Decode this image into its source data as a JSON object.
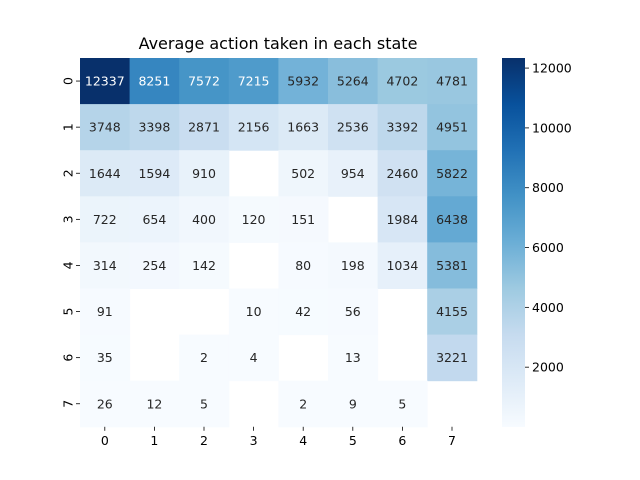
{
  "chart_data": {
    "type": "heatmap",
    "title": "Average action taken in each state",
    "xlabel": "",
    "ylabel": "",
    "x_categories": [
      "0",
      "1",
      "2",
      "3",
      "4",
      "5",
      "6",
      "7"
    ],
    "y_categories": [
      "0",
      "1",
      "2",
      "3",
      "4",
      "5",
      "6",
      "7"
    ],
    "values": [
      [
        12337,
        8251,
        7572,
        7215,
        5932,
        5264,
        4702,
        4781
      ],
      [
        3748,
        3398,
        2871,
        2156,
        1663,
        2536,
        3392,
        4951
      ],
      [
        1644,
        1594,
        910,
        null,
        502,
        954,
        2460,
        5822
      ],
      [
        722,
        654,
        400,
        120,
        151,
        null,
        1984,
        6438
      ],
      [
        314,
        254,
        142,
        null,
        80,
        198,
        1034,
        5381
      ],
      [
        91,
        null,
        null,
        10,
        42,
        56,
        null,
        4155
      ],
      [
        35,
        null,
        2,
        4,
        null,
        13,
        null,
        3221
      ],
      [
        26,
        12,
        5,
        null,
        2,
        9,
        5,
        null
      ]
    ],
    "colormap": "Blues",
    "vmin": 0,
    "vmax": 12337,
    "colorbar": {
      "ticks": [
        "2000",
        "4000",
        "6000",
        "8000",
        "10000",
        "12000"
      ],
      "tick_values": [
        2000,
        4000,
        6000,
        8000,
        10000,
        12000
      ]
    },
    "annotations": true,
    "grid": false
  }
}
